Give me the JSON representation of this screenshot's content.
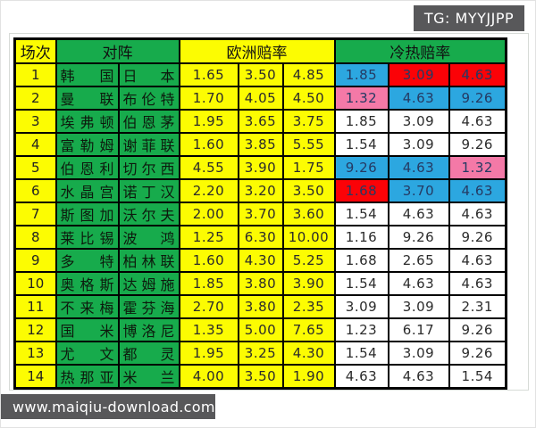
{
  "watermarks": {
    "tg": "TG: MYYJJPP",
    "site": "www.maiqiu-download.com",
    "bg": "#58585a"
  },
  "table": {
    "headers": {
      "match": "场次",
      "matchup": "对阵",
      "euro": "欧洲赔率",
      "coldhot": "冷热赔率"
    },
    "colors": {
      "yellow": "#fcfc02",
      "green": "#17ab4c",
      "blue": "#2ca7e0",
      "red": "#fb0207",
      "pink": "#f479a7",
      "white": "#ffffff",
      "cold_text_colored": "#253a63",
      "cold_text_plain": "#2b2b2b"
    },
    "rows": [
      {
        "no": "1",
        "home": "韩国",
        "away": "日本",
        "euro": [
          "1.65",
          "3.50",
          "4.85"
        ],
        "cold": [
          {
            "v": "1.85",
            "c": "blue"
          },
          {
            "v": "3.09",
            "c": "red"
          },
          {
            "v": "4.63",
            "c": "red"
          }
        ]
      },
      {
        "no": "2",
        "home": "曼联",
        "away": "布伦特",
        "euro": [
          "1.70",
          "4.05",
          "4.50"
        ],
        "cold": [
          {
            "v": "1.32",
            "c": "pink"
          },
          {
            "v": "4.63",
            "c": "blue"
          },
          {
            "v": "9.26",
            "c": "blue"
          }
        ]
      },
      {
        "no": "3",
        "home": "埃弗顿",
        "away": "伯恩茅",
        "euro": [
          "1.95",
          "3.65",
          "3.75"
        ],
        "cold": [
          {
            "v": "1.85",
            "c": "white"
          },
          {
            "v": "3.09",
            "c": "white"
          },
          {
            "v": "4.63",
            "c": "white"
          }
        ]
      },
      {
        "no": "4",
        "home": "富勒姆",
        "away": "谢菲联",
        "euro": [
          "1.60",
          "3.85",
          "5.55"
        ],
        "cold": [
          {
            "v": "1.54",
            "c": "white"
          },
          {
            "v": "3.09",
            "c": "white"
          },
          {
            "v": "9.26",
            "c": "white"
          }
        ]
      },
      {
        "no": "5",
        "home": "伯恩利",
        "away": "切尔西",
        "euro": [
          "4.55",
          "3.90",
          "1.75"
        ],
        "cold": [
          {
            "v": "9.26",
            "c": "blue"
          },
          {
            "v": "4.63",
            "c": "blue"
          },
          {
            "v": "1.32",
            "c": "pink"
          }
        ]
      },
      {
        "no": "6",
        "home": "水晶宫",
        "away": "诺丁汉",
        "euro": [
          "2.20",
          "3.20",
          "3.50"
        ],
        "cold": [
          {
            "v": "1.68",
            "c": "red"
          },
          {
            "v": "3.70",
            "c": "blue"
          },
          {
            "v": "4.63",
            "c": "blue"
          }
        ]
      },
      {
        "no": "7",
        "home": "斯图加",
        "away": "沃尔夫",
        "euro": [
          "2.00",
          "3.70",
          "3.60"
        ],
        "cold": [
          {
            "v": "1.54",
            "c": "white"
          },
          {
            "v": "4.63",
            "c": "white"
          },
          {
            "v": "4.63",
            "c": "white"
          }
        ]
      },
      {
        "no": "8",
        "home": "莱比锡",
        "away": "波鸿",
        "euro": [
          "1.25",
          "6.30",
          "10.00"
        ],
        "cold": [
          {
            "v": "1.16",
            "c": "white"
          },
          {
            "v": "9.26",
            "c": "white"
          },
          {
            "v": "9.26",
            "c": "white"
          }
        ]
      },
      {
        "no": "9",
        "home": "多特",
        "away": "柏林联",
        "euro": [
          "1.60",
          "4.30",
          "5.25"
        ],
        "cold": [
          {
            "v": "1.68",
            "c": "white"
          },
          {
            "v": "2.65",
            "c": "white"
          },
          {
            "v": "4.63",
            "c": "white"
          }
        ]
      },
      {
        "no": "10",
        "home": "奥格斯",
        "away": "达姆施",
        "euro": [
          "1.85",
          "3.80",
          "3.90"
        ],
        "cold": [
          {
            "v": "1.54",
            "c": "white"
          },
          {
            "v": "4.63",
            "c": "white"
          },
          {
            "v": "4.63",
            "c": "white"
          }
        ]
      },
      {
        "no": "11",
        "home": "不来梅",
        "away": "霍芬海",
        "euro": [
          "2.70",
          "3.80",
          "2.35"
        ],
        "cold": [
          {
            "v": "3.09",
            "c": "white"
          },
          {
            "v": "3.09",
            "c": "white"
          },
          {
            "v": "2.31",
            "c": "white"
          }
        ]
      },
      {
        "no": "12",
        "home": "国米",
        "away": "博洛尼",
        "euro": [
          "1.35",
          "5.00",
          "7.65"
        ],
        "cold": [
          {
            "v": "1.23",
            "c": "white"
          },
          {
            "v": "6.17",
            "c": "white"
          },
          {
            "v": "9.26",
            "c": "white"
          }
        ]
      },
      {
        "no": "13",
        "home": "尤文",
        "away": "都灵",
        "euro": [
          "1.95",
          "3.25",
          "4.30"
        ],
        "cold": [
          {
            "v": "1.54",
            "c": "white"
          },
          {
            "v": "3.09",
            "c": "white"
          },
          {
            "v": "9.26",
            "c": "white"
          }
        ]
      },
      {
        "no": "14",
        "home": "热那亚",
        "away": "米兰",
        "euro": [
          "4.00",
          "3.50",
          "1.90"
        ],
        "cold": [
          {
            "v": "4.63",
            "c": "white"
          },
          {
            "v": "4.63",
            "c": "white"
          },
          {
            "v": "1.54",
            "c": "white"
          }
        ]
      }
    ]
  }
}
